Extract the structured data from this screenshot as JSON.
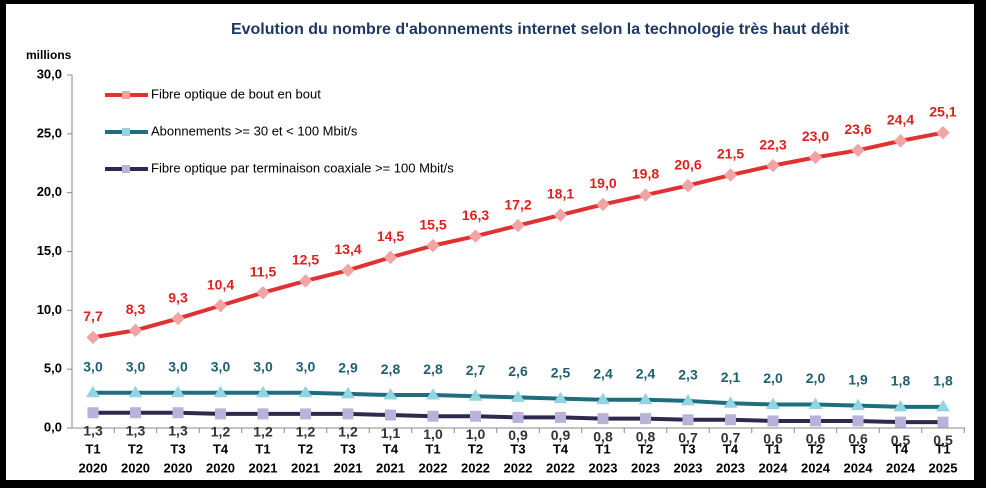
{
  "chart_data": {
    "type": "line",
    "title": "Evolution du nombre d'abonnements internet selon la technologie très haut débit",
    "ylabel": "millions",
    "categories": [
      [
        "T1",
        "2020"
      ],
      [
        "T2",
        "2020"
      ],
      [
        "T3",
        "2020"
      ],
      [
        "T4",
        "2020"
      ],
      [
        "T1",
        "2021"
      ],
      [
        "T2",
        "2021"
      ],
      [
        "T3",
        "2021"
      ],
      [
        "T4",
        "2021"
      ],
      [
        "T1",
        "2022"
      ],
      [
        "T2",
        "2022"
      ],
      [
        "T3",
        "2022"
      ],
      [
        "T4",
        "2022"
      ],
      [
        "T1",
        "2023"
      ],
      [
        "T2",
        "2023"
      ],
      [
        "T3",
        "2023"
      ],
      [
        "T4",
        "2023"
      ],
      [
        "T1",
        "2024"
      ],
      [
        "T2",
        "2024"
      ],
      [
        "T3",
        "2024"
      ],
      [
        "T4",
        "2024"
      ],
      [
        "T1",
        "2025"
      ]
    ],
    "ylim": [
      0,
      30
    ],
    "yticks": [
      {
        "value": 0,
        "label": "0,0"
      },
      {
        "value": 5,
        "label": "5,0"
      },
      {
        "value": 10,
        "label": "10,0"
      },
      {
        "value": 15,
        "label": "15,0"
      },
      {
        "value": 20,
        "label": "20,0"
      },
      {
        "value": 25,
        "label": "25,0"
      },
      {
        "value": 30,
        "label": "30,0"
      }
    ],
    "legend": "upper left",
    "series": [
      {
        "name": "Fibre optique de bout en bout",
        "color": "#e03232",
        "marker_color": "#f2a4a4",
        "marker": "diamond",
        "label_color": "#e02020",
        "label_position": "above",
        "values": [
          7.7,
          8.3,
          9.3,
          10.4,
          11.5,
          12.5,
          13.4,
          14.5,
          15.5,
          16.3,
          17.2,
          18.1,
          19.0,
          19.8,
          20.6,
          21.5,
          22.3,
          23.0,
          23.6,
          24.4,
          25.1
        ],
        "value_labels": [
          "7,7",
          "8,3",
          "9,3",
          "10,4",
          "11,5",
          "12,5",
          "13,4",
          "14,5",
          "15,5",
          "16,3",
          "17,2",
          "18,1",
          "19,0",
          "19,8",
          "20,6",
          "21,5",
          "22,3",
          "23,0",
          "23,6",
          "24,4",
          "25,1"
        ]
      },
      {
        "name": "Abonnements >= 30 et < 100 Mbit/s",
        "color": "#1f6e7e",
        "marker_color": "#92d4e2",
        "marker": "triangle",
        "label_color": "#1f5f6f",
        "label_position": "above",
        "values": [
          3.0,
          3.0,
          3.0,
          3.0,
          3.0,
          3.0,
          2.9,
          2.8,
          2.8,
          2.7,
          2.6,
          2.5,
          2.4,
          2.4,
          2.3,
          2.1,
          2.0,
          2.0,
          1.9,
          1.8,
          1.8
        ],
        "value_labels": [
          "3,0",
          "3,0",
          "3,0",
          "3,0",
          "3,0",
          "3,0",
          "2,9",
          "2,8",
          "2,8",
          "2,7",
          "2,6",
          "2,5",
          "2,4",
          "2,4",
          "2,3",
          "2,1",
          "2,0",
          "2,0",
          "1,9",
          "1,8",
          "1,8"
        ]
      },
      {
        "name": "Fibre optique par terminaison coaxiale >= 100 Mbit/s",
        "color": "#2e2a4f",
        "marker_color": "#bab2d9",
        "marker": "square",
        "label_color": "#333333",
        "label_position": "below",
        "values": [
          1.3,
          1.3,
          1.3,
          1.2,
          1.2,
          1.2,
          1.2,
          1.1,
          1.0,
          1.0,
          0.9,
          0.9,
          0.8,
          0.8,
          0.7,
          0.7,
          0.6,
          0.6,
          0.6,
          0.5,
          0.5
        ],
        "value_labels": [
          "1,3",
          "1,3",
          "1,3",
          "1,2",
          "1,2",
          "1,2",
          "1,2",
          "1,1",
          "1,0",
          "1,0",
          "0,9",
          "0,9",
          "0,8",
          "0,8",
          "0,7",
          "0,7",
          "0,6",
          "0,6",
          "0,6",
          "0,5",
          "0,5"
        ]
      }
    ]
  }
}
